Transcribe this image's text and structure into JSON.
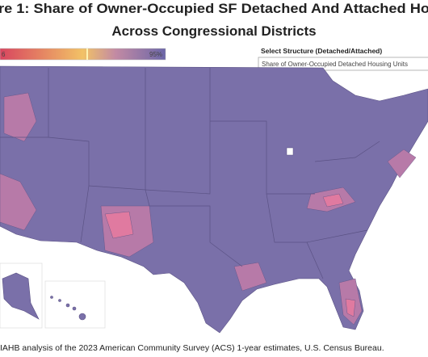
{
  "header": {
    "title_line1": "re 1: Share of Owner-Occupied SF Detached And Attached Ho",
    "title_line2": "Across Congressional Districts"
  },
  "legend": {
    "min_label": "6",
    "max_label": "95%"
  },
  "filter": {
    "label": "Select Structure (Detached/Attached)",
    "selected": "Share of Owner-Occupied Detached Housing Units"
  },
  "footer": {
    "source": "IAHB analysis of the 2023 American Community Survey (ACS) 1-year estimates, U.S. Census Bureau."
  }
}
